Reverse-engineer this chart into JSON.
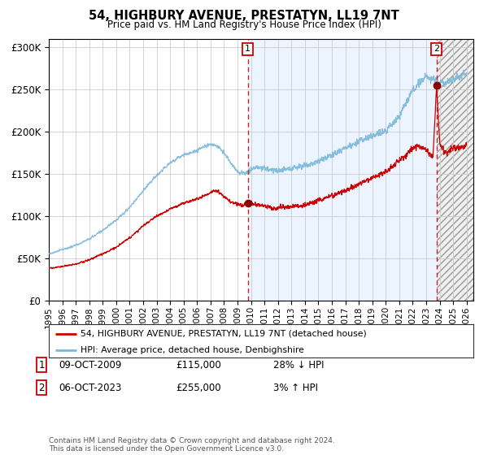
{
  "title": "54, HIGHBURY AVENUE, PRESTATYN, LL19 7NT",
  "subtitle": "Price paid vs. HM Land Registry's House Price Index (HPI)",
  "legend_line1": "54, HIGHBURY AVENUE, PRESTATYN, LL19 7NT (detached house)",
  "legend_line2": "HPI: Average price, detached house, Denbighshire",
  "annotation1_date": "09-OCT-2009",
  "annotation1_price": "£115,000",
  "annotation1_hpi": "28% ↓ HPI",
  "annotation2_date": "06-OCT-2023",
  "annotation2_price": "£255,000",
  "annotation2_hpi": "3% ↑ HPI",
  "footer": "Contains HM Land Registry data © Crown copyright and database right 2024.\nThis data is licensed under the Open Government Licence v3.0.",
  "sale1_year": 2009.77,
  "sale1_value": 115000,
  "sale2_year": 2023.77,
  "sale2_value": 255000,
  "hpi_color": "#7ab8d9",
  "price_color": "#cc0000",
  "shade_color": "#ddeeff",
  "sale_marker_color": "#880000",
  "grid_color": "#cccccc",
  "ylim": [
    0,
    310000
  ],
  "xlim_start": 1995.0,
  "xlim_end": 2026.5,
  "hatch_start": 2023.77,
  "shade_start": 2009.77
}
